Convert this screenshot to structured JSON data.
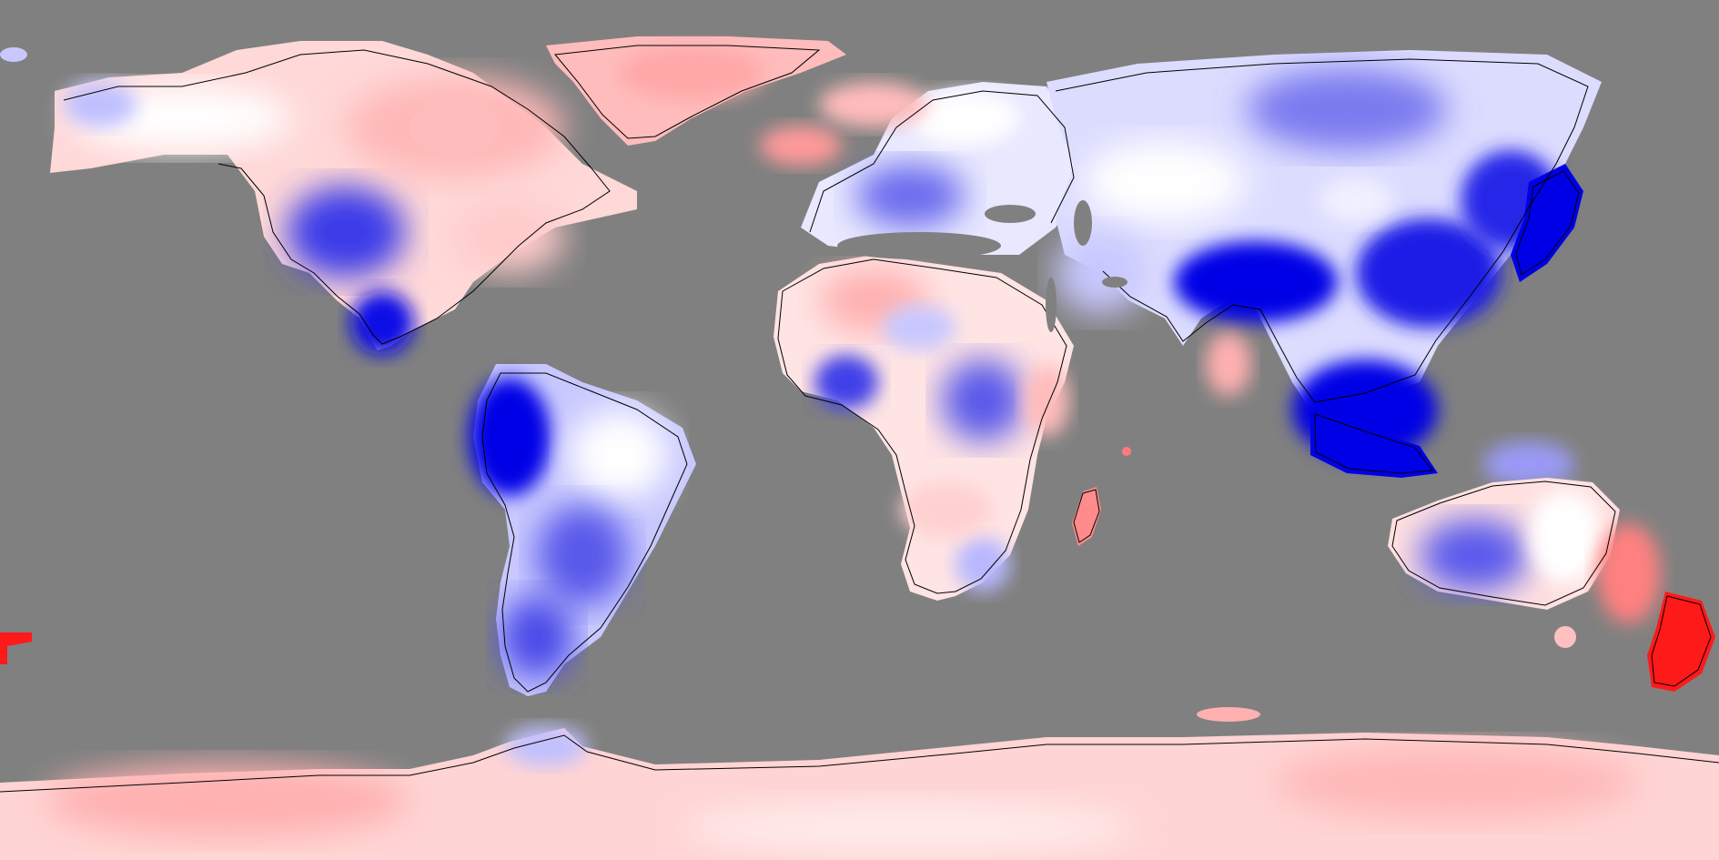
{
  "map": {
    "projection": "equirectangular",
    "background_color": "#808080",
    "coastline_color": "#000000",
    "palette": {
      "strong_negative": "#0000e6",
      "weak_negative": "#c8c8ff",
      "neutral": "#ffffff",
      "weak_positive": "#ffc8c8",
      "strong_positive": "#ff1a1a"
    },
    "colorbar_shown": false,
    "legend_shown": false
  }
}
